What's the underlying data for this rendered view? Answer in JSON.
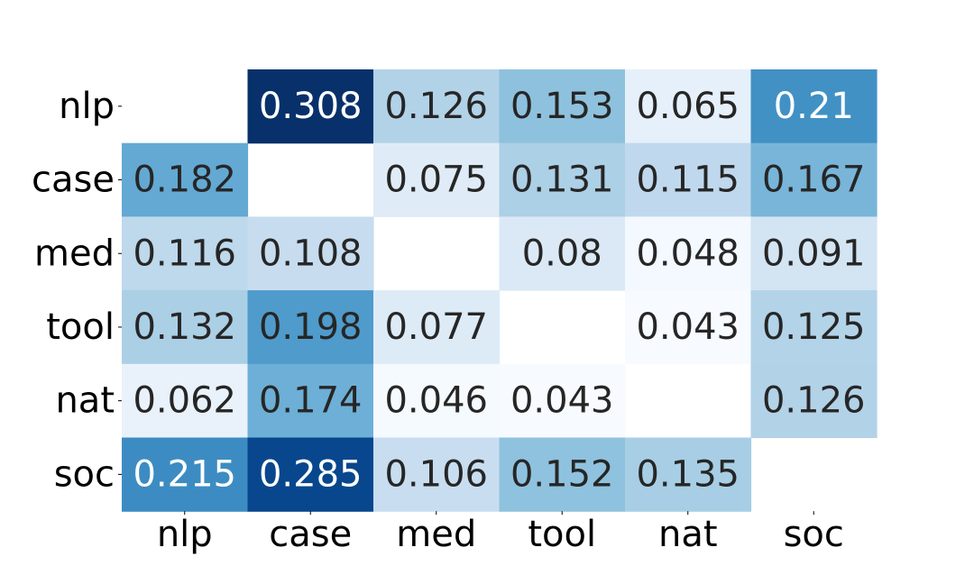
{
  "chart_data": {
    "type": "heatmap",
    "title": "",
    "xlabel": "",
    "ylabel": "",
    "x_categories": [
      "nlp",
      "case",
      "med",
      "tool",
      "nat",
      "soc"
    ],
    "y_categories": [
      "nlp",
      "case",
      "med",
      "tool",
      "nat",
      "soc"
    ],
    "values": [
      [
        null,
        0.308,
        0.126,
        0.153,
        0.065,
        0.21
      ],
      [
        0.182,
        null,
        0.075,
        0.131,
        0.115,
        0.167
      ],
      [
        0.116,
        0.108,
        null,
        0.08,
        0.048,
        0.091
      ],
      [
        0.132,
        0.198,
        0.077,
        null,
        0.043,
        0.125
      ],
      [
        0.062,
        0.174,
        0.046,
        0.043,
        null,
        0.126
      ],
      [
        0.215,
        0.285,
        0.106,
        0.152,
        0.135,
        null
      ]
    ],
    "value_labels": [
      [
        "",
        "0.308",
        "0.126",
        "0.153",
        "0.065",
        "0.21"
      ],
      [
        "0.182",
        "",
        "0.075",
        "0.131",
        "0.115",
        "0.167"
      ],
      [
        "0.116",
        "0.108",
        "",
        "0.08",
        "0.048",
        "0.091"
      ],
      [
        "0.132",
        "0.198",
        "0.077",
        "",
        "0.043",
        "0.125"
      ],
      [
        "0.062",
        "0.174",
        "0.046",
        "0.043",
        "",
        "0.126"
      ],
      [
        "0.215",
        "0.285",
        "0.106",
        "0.152",
        "0.135",
        ""
      ]
    ],
    "colormap": "Blues",
    "color_range": [
      0.043,
      0.308
    ],
    "colorbar": false,
    "grid": false,
    "annotated": true,
    "diagonal_masked": true
  }
}
